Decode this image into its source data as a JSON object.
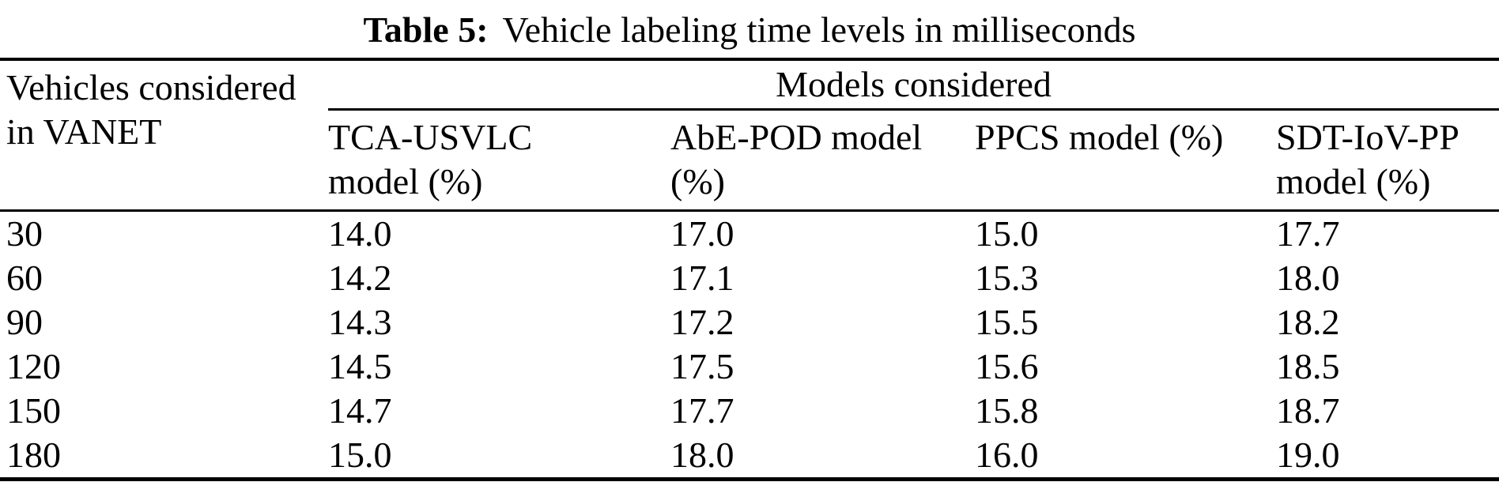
{
  "title": {
    "label": "Table 5:",
    "text": "Vehicle labeling time levels in milliseconds"
  },
  "table": {
    "row_header": {
      "full": "Vehicles considered in VANET",
      "line1": "Vehicles considered",
      "line2": "in VANET"
    },
    "group_header": "Models considered",
    "columns": [
      {
        "full": "TCA-USVLC model (%)",
        "line1": "TCA-USVLC",
        "line2": "model (%)"
      },
      {
        "full": "AbE-POD model (%)",
        "line1": "AbE-POD model",
        "line2": "(%)"
      },
      {
        "full": "PPCS model (%)",
        "line1": "PPCS model (%)",
        "line2": ""
      },
      {
        "full": "SDT-IoV-PP model (%)",
        "line1": "SDT-IoV-PP",
        "line2": "model (%)"
      }
    ],
    "rows": [
      [
        "30",
        "14.0",
        "17.0",
        "15.0",
        "17.7"
      ],
      [
        "60",
        "14.2",
        "17.1",
        "15.3",
        "18.0"
      ],
      [
        "90",
        "14.3",
        "17.2",
        "15.5",
        "18.2"
      ],
      [
        "120",
        "14.5",
        "17.5",
        "15.6",
        "18.5"
      ],
      [
        "150",
        "14.7",
        "17.7",
        "15.8",
        "18.7"
      ],
      [
        "180",
        "15.0",
        "18.0",
        "16.0",
        "19.0"
      ]
    ]
  },
  "colors": {
    "background": "#ffffff",
    "text": "#000000",
    "rule": "#000000"
  }
}
